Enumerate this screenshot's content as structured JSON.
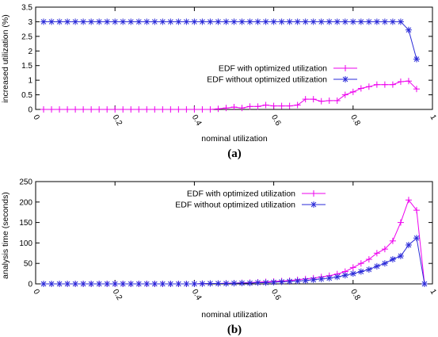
{
  "chart_data": [
    {
      "type": "line",
      "caption": "(a)",
      "xlabel": "nominal utilization",
      "ylabel": "increased utilization (%)",
      "xlim": [
        0,
        1
      ],
      "ylim": [
        0,
        3.5
      ],
      "xticks": [
        "0",
        "0.2",
        "0.4",
        "0.6",
        "0.8",
        "1"
      ],
      "yticks": [
        "0",
        "0.5",
        "1",
        "1.5",
        "2",
        "2.5",
        "3",
        "3.5"
      ],
      "legend_position": "center-right",
      "x": [
        0.02,
        0.04,
        0.06,
        0.08,
        0.1,
        0.12,
        0.14,
        0.16,
        0.18,
        0.2,
        0.22,
        0.24,
        0.26,
        0.28,
        0.3,
        0.32,
        0.34,
        0.36,
        0.38,
        0.4,
        0.42,
        0.44,
        0.46,
        0.48,
        0.5,
        0.52,
        0.54,
        0.56,
        0.58,
        0.6,
        0.62,
        0.64,
        0.66,
        0.68,
        0.7,
        0.72,
        0.74,
        0.76,
        0.78,
        0.8,
        0.82,
        0.84,
        0.86,
        0.88,
        0.9,
        0.92,
        0.94,
        0.96
      ],
      "series": [
        {
          "name": "EDF with optimized utilization",
          "color": "#ee00ee",
          "marker": "plus",
          "values": [
            0,
            0,
            0,
            0,
            0,
            0,
            0,
            0,
            0,
            0,
            0,
            0,
            0,
            0,
            0,
            0,
            0,
            0,
            0,
            0,
            0,
            0,
            0.02,
            0.05,
            0.08,
            0.05,
            0.1,
            0.1,
            0.15,
            0.12,
            0.12,
            0.12,
            0.15,
            0.35,
            0.35,
            0.28,
            0.3,
            0.3,
            0.5,
            0.6,
            0.72,
            0.78,
            0.85,
            0.85,
            0.85,
            0.95,
            0.97,
            0.7
          ]
        },
        {
          "name": "EDF without optimized utilization",
          "color": "#2a2ad8",
          "marker": "star",
          "values": [
            3,
            3,
            3,
            3,
            3,
            3,
            3,
            3,
            3,
            3,
            3,
            3,
            3,
            3,
            3,
            3,
            3,
            3,
            3,
            3,
            3,
            3,
            3,
            3,
            3,
            3,
            3,
            3,
            3,
            3,
            3,
            3,
            3,
            3,
            3,
            3,
            3,
            3,
            3,
            3,
            3,
            3,
            3,
            3,
            3,
            3,
            2.72,
            1.72
          ]
        }
      ]
    },
    {
      "type": "line",
      "caption": "(b)",
      "xlabel": "nominal utilization",
      "ylabel": "analysis time (seconds)",
      "xlim": [
        0,
        1
      ],
      "ylim": [
        0,
        250
      ],
      "xticks": [
        "0",
        "0.2",
        "0.4",
        "0.6",
        "0.8",
        "1"
      ],
      "yticks": [
        "0",
        "50",
        "100",
        "150",
        "200",
        "250"
      ],
      "legend_position": "top-right",
      "x": [
        0.02,
        0.04,
        0.06,
        0.08,
        0.1,
        0.12,
        0.14,
        0.16,
        0.18,
        0.2,
        0.22,
        0.24,
        0.26,
        0.28,
        0.3,
        0.32,
        0.34,
        0.36,
        0.38,
        0.4,
        0.42,
        0.44,
        0.46,
        0.48,
        0.5,
        0.52,
        0.54,
        0.56,
        0.58,
        0.6,
        0.62,
        0.64,
        0.66,
        0.68,
        0.7,
        0.72,
        0.74,
        0.76,
        0.78,
        0.8,
        0.82,
        0.84,
        0.86,
        0.88,
        0.9,
        0.92,
        0.94,
        0.96,
        0.98
      ],
      "series": [
        {
          "name": "EDF with optimized utilization",
          "color": "#ee00ee",
          "marker": "plus",
          "values": [
            0,
            0,
            0,
            0,
            0,
            0,
            0,
            0,
            0,
            0,
            0,
            0,
            0,
            0,
            0,
            0,
            0,
            0,
            0,
            0,
            0.5,
            1,
            1,
            1.5,
            2,
            2.5,
            3,
            4,
            5,
            6,
            7,
            8,
            10,
            12,
            14,
            17,
            20,
            24,
            30,
            40,
            50,
            60,
            75,
            85,
            105,
            150,
            205,
            180,
            0
          ]
        },
        {
          "name": "EDF without optimized utilization",
          "color": "#2a2ad8",
          "marker": "star",
          "values": [
            0,
            0,
            0,
            0,
            0,
            0,
            0,
            0,
            0,
            0,
            0,
            0,
            0,
            0,
            0,
            0,
            0,
            0,
            0,
            0,
            0.5,
            1,
            1,
            1,
            1.5,
            2,
            2,
            3,
            3,
            4,
            5,
            6,
            7,
            8,
            10,
            12,
            14,
            17,
            21,
            25,
            30,
            35,
            43,
            50,
            60,
            68,
            95,
            112,
            0
          ]
        }
      ]
    }
  ]
}
